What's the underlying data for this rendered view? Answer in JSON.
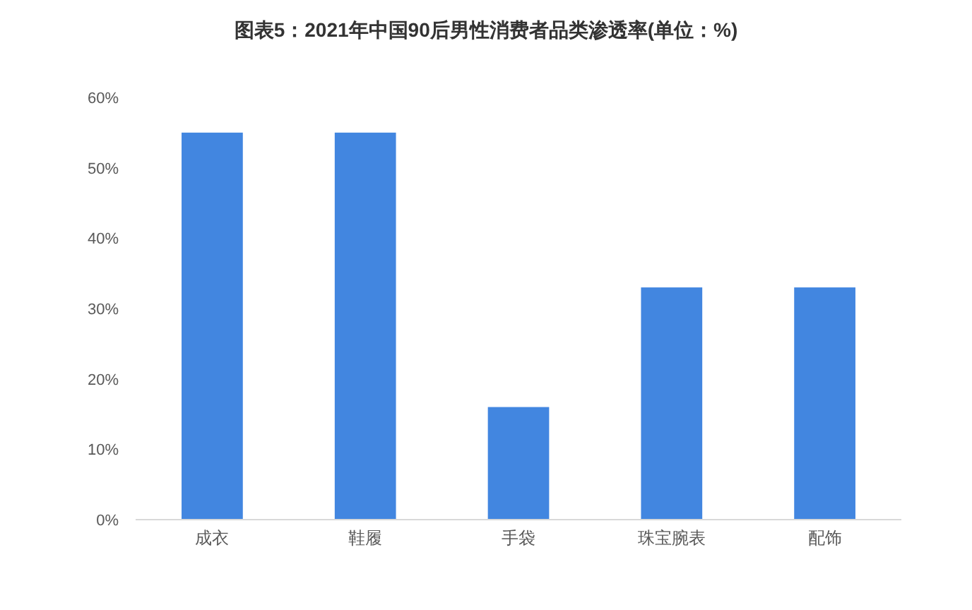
{
  "chart_data": {
    "type": "bar",
    "title": "图表5：2021年中国90后男性消费者品类渗透率(单位：%)",
    "categories": [
      "成衣",
      "鞋履",
      "手袋",
      "珠宝腕表",
      "配饰"
    ],
    "values": [
      55,
      55,
      16,
      33,
      33
    ],
    "color": "#4286e0",
    "ylim": [
      0,
      60
    ],
    "yticks": [
      {
        "value": 0,
        "label": "0%"
      },
      {
        "value": 10,
        "label": "10%"
      },
      {
        "value": 20,
        "label": "20%"
      },
      {
        "value": 30,
        "label": "30%"
      },
      {
        "value": 40,
        "label": "40%"
      },
      {
        "value": 50,
        "label": "50%"
      },
      {
        "value": 60,
        "label": "60%"
      }
    ],
    "grid": false
  }
}
